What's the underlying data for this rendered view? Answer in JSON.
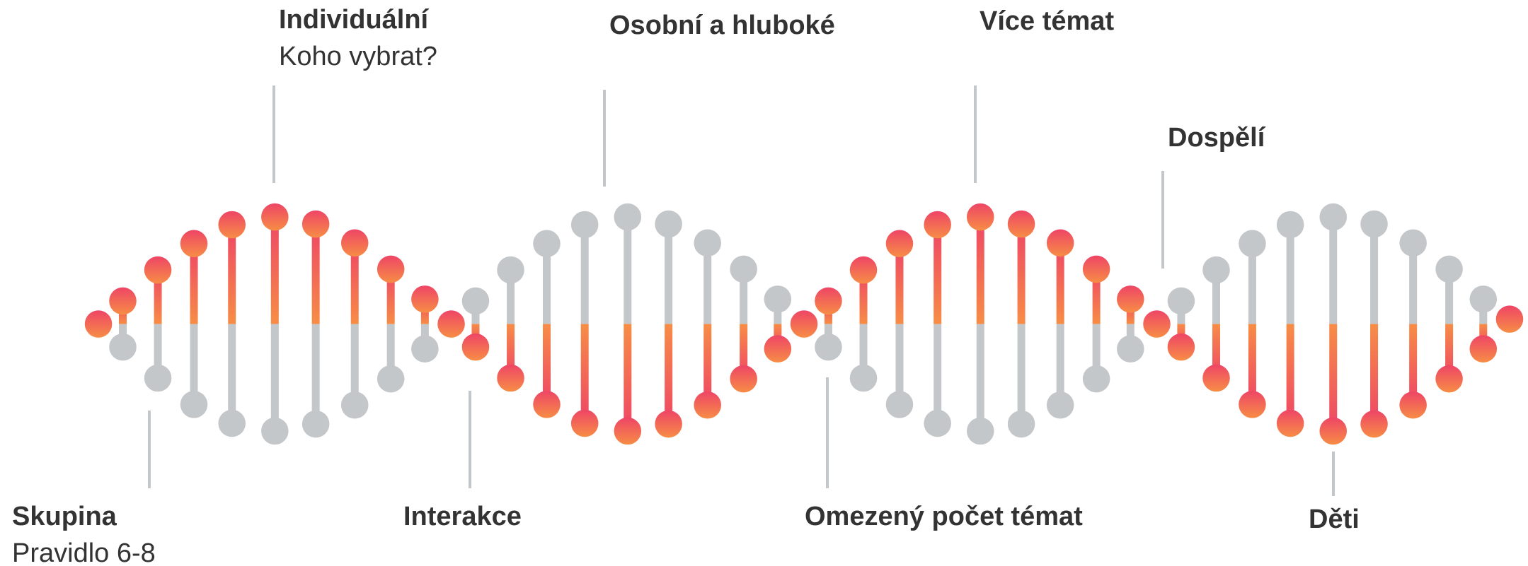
{
  "labels": {
    "individual": {
      "title": "Individuální",
      "subtitle": "Koho vybrat?"
    },
    "personal": {
      "title": "Osobní a hluboké"
    },
    "more_topics": {
      "title": "Více témat"
    },
    "adults": {
      "title": "Dospělí"
    },
    "group": {
      "title": "Skupina",
      "subtitle": "Pravidlo 6-8"
    },
    "interaction": {
      "title": "Interakce"
    },
    "limited_topics": {
      "title": "Omezený počet témat"
    },
    "children": {
      "title": "Děti"
    }
  }
}
